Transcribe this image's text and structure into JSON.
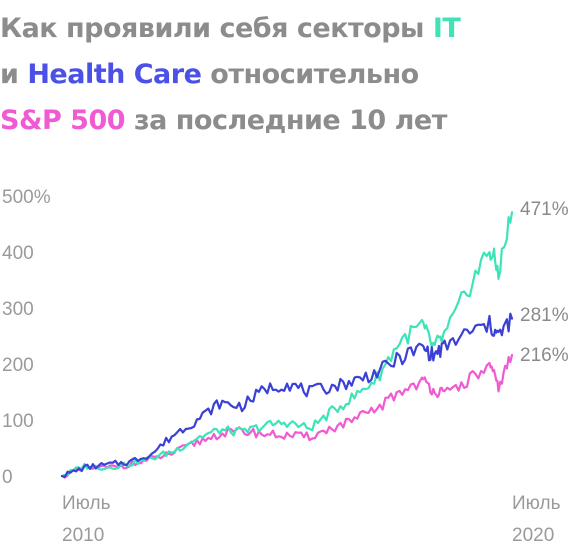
{
  "title": {
    "part1": "Как проявили себя секторы ",
    "it": "IT",
    "part2": "и ",
    "hc": "Health Care",
    "part3": " относительно",
    "sp": "S&P 500",
    "part4": " за последние 10 лет"
  },
  "colors": {
    "it": "#3fe3b8",
    "health_care": "#3b40d6",
    "sp500": "#f05ad2",
    "title_gray": "#8c8c8c",
    "hc_title": "#4b50e6"
  },
  "chart_data": {
    "type": "line",
    "x_start": "Июль 2010",
    "x_end": "Июль 2020",
    "x_tick_labels": [
      {
        "line1": "Июль",
        "line2": "2010"
      },
      {
        "line1": "Июль",
        "line2": "2020"
      }
    ],
    "y_tick_labels": [
      "500%",
      "400",
      "300",
      "200",
      "100",
      "0"
    ],
    "y_ticks": [
      500,
      400,
      300,
      200,
      100,
      0
    ],
    "ylim": [
      0,
      500
    ],
    "grid": false,
    "x": [
      2010.5,
      2011.0,
      2011.5,
      2012.0,
      2012.5,
      2013.0,
      2013.5,
      2014.0,
      2014.5,
      2015.0,
      2015.5,
      2016.0,
      2016.5,
      2017.0,
      2017.5,
      2018.0,
      2018.5,
      2018.75,
      2019.0,
      2019.5,
      2020.0,
      2020.2,
      2020.5
    ],
    "series": [
      {
        "key": "it",
        "end_label": "471%",
        "values": [
          0,
          18,
          15,
          22,
          32,
          45,
          68,
          82,
          78,
          90,
          96,
          85,
          115,
          142,
          175,
          240,
          270,
          230,
          250,
          330,
          405,
          365,
          471
        ]
      },
      {
        "key": "health_care",
        "end_label": "281%",
        "values": [
          0,
          15,
          20,
          25,
          40,
          75,
          100,
          130,
          125,
          155,
          165,
          150,
          160,
          170,
          185,
          210,
          230,
          215,
          230,
          255,
          270,
          250,
          281
        ]
      },
      {
        "key": "sp500",
        "end_label": "216%",
        "values": [
          0,
          14,
          15,
          20,
          30,
          42,
          60,
          75,
          80,
          75,
          72,
          70,
          85,
          100,
          120,
          150,
          170,
          155,
          145,
          170,
          195,
          160,
          216
        ]
      }
    ]
  }
}
